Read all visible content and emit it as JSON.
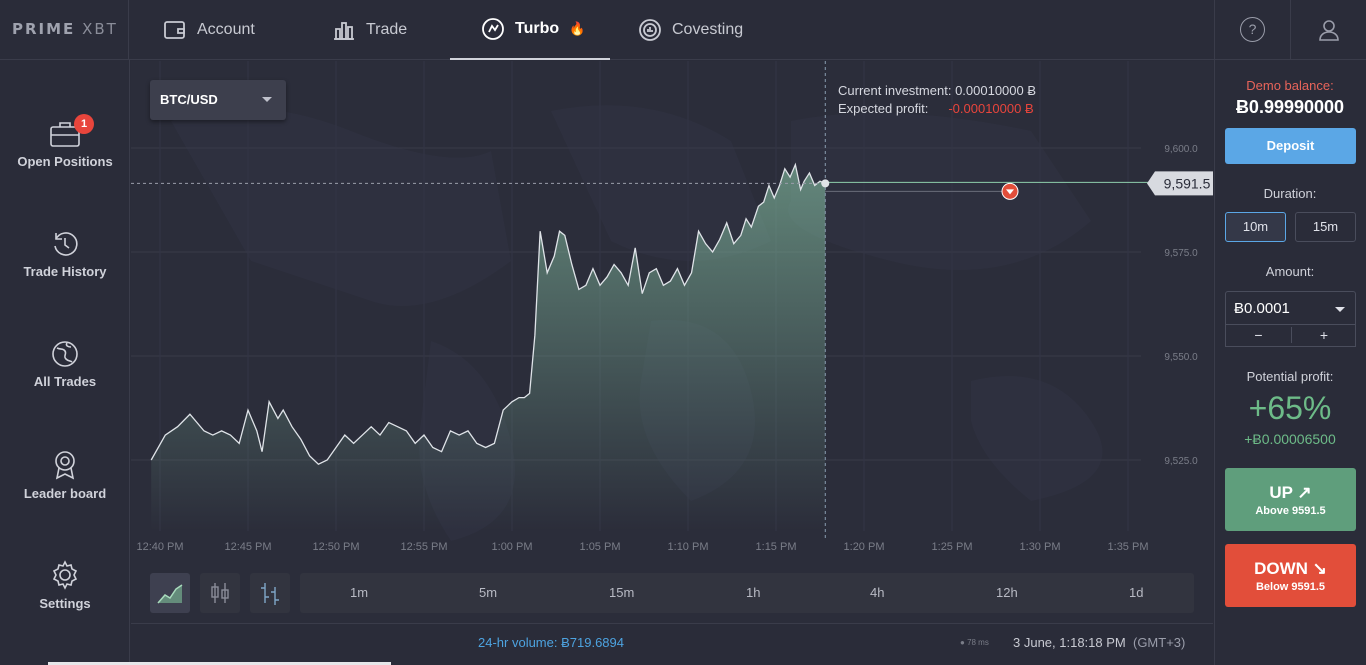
{
  "app": {
    "logo_bold": "PRIME",
    "logo_light": " XBT"
  },
  "nav": {
    "items": [
      {
        "label": "Account",
        "icon": "wallet-icon"
      },
      {
        "label": "Trade",
        "icon": "bar-chart-icon"
      },
      {
        "label": "Turbo",
        "icon": "turbo-icon",
        "active": true
      },
      {
        "label": "Covesting",
        "icon": "covesting-icon"
      }
    ],
    "turbo_badge": "🔥",
    "help": "?"
  },
  "sidebar": {
    "items": [
      {
        "label": "Open Positions",
        "icon": "briefcase-icon",
        "badge": "1"
      },
      {
        "label": "Trade History",
        "icon": "history-icon"
      },
      {
        "label": "All Trades",
        "icon": "globe-icon"
      },
      {
        "label": "Leader board",
        "icon": "award-icon"
      },
      {
        "label": "Settings",
        "icon": "gear-icon"
      }
    ]
  },
  "chart": {
    "pair": "BTC/USD",
    "current_investment_label": "Current investment:",
    "current_investment_value": "0.00010000 Ƀ",
    "expected_profit_label": "Expected profit:",
    "expected_profit_value": "-0.00010000 Ƀ",
    "current_price_label": "9,591.5",
    "timeframes": [
      "1m",
      "5m",
      "15m",
      "1h",
      "4h",
      "12h",
      "1d"
    ]
  },
  "chart_data": {
    "type": "area",
    "title": "",
    "x_tick_labels": [
      "12:40 PM",
      "12:45 PM",
      "12:50 PM",
      "12:55 PM",
      "1:00 PM",
      "1:05 PM",
      "1:10 PM",
      "1:15 PM",
      "1:20 PM",
      "1:25 PM",
      "1:30 PM",
      "1:35 PM"
    ],
    "y_tick_labels": [
      "9,600.0",
      "9,575.0",
      "9,550.0",
      "9,525.0"
    ],
    "ylim": [
      9506,
      9609
    ],
    "grid": true,
    "current_price": 9591.5,
    "entry_marker": "down",
    "x_unit": "minutes after 12:40 PM",
    "series": [
      {
        "x": [
          -0.5,
          0.3,
          1,
          1.7,
          2.5,
          3,
          3.5,
          4,
          4.5,
          5,
          5.5,
          5.8,
          6.2,
          6.7,
          7,
          7.5,
          8,
          8.5,
          9,
          9.5,
          10,
          10.5,
          11,
          11.5,
          12,
          12.5,
          13,
          13.5,
          14,
          14.5,
          15,
          15.5,
          16,
          16.5,
          17,
          17.5,
          18,
          18.5,
          19,
          19.5,
          20,
          20.4,
          20.7,
          21,
          21.3,
          21.6,
          22,
          22.4,
          22.7,
          23,
          23.4,
          23.8,
          24.2,
          24.6,
          25,
          25.4,
          25.8,
          26.2,
          26.6,
          27,
          27.4,
          27.8,
          28.2,
          28.6,
          29,
          29.4,
          29.8,
          30.2,
          30.6,
          31,
          31.4,
          31.8,
          32.2,
          32.6,
          33,
          33.3,
          33.6,
          34,
          34.3,
          34.6,
          34.9,
          35.2,
          35.5,
          35.8,
          36.1,
          36.4,
          36.6,
          36.9,
          37.2,
          37.5,
          37.8
        ],
        "values": [
          9525,
          9531,
          9533,
          9536,
          9532,
          9531,
          9532,
          9531,
          9529,
          9537,
          9532,
          9527,
          9539,
          9535,
          9537,
          9533,
          9530,
          9526,
          9524,
          9525,
          9528,
          9531,
          9529,
          9531,
          9533,
          9531,
          9534,
          9533,
          9532,
          9529,
          9531,
          9528,
          9527,
          9532,
          9531,
          9532,
          9529,
          9528,
          9529,
          9537,
          9539,
          9540,
          9540,
          9541,
          9555,
          9580,
          9570,
          9574,
          9580,
          9579,
          9572,
          9566,
          9567,
          9571,
          9567,
          9569,
          9572,
          9570,
          9567,
          9576,
          9565,
          9570,
          9571,
          9567,
          9568,
          9571,
          9567,
          9570,
          9580,
          9577,
          9575,
          9578,
          9582,
          9577,
          9579,
          9583,
          9581,
          9586,
          9587,
          9591,
          9588,
          9591,
          9595,
          9593,
          9596,
          9590,
          9592,
          9594,
          9591,
          9592,
          9591.5
        ]
      }
    ]
  },
  "status": {
    "volume": "24-hr volume: Ƀ719.6894",
    "ping": "78 ms",
    "datetime": "3 June, 1:18:18 PM",
    "timezone": "(GMT+3)"
  },
  "panel": {
    "demo_label": "Demo balance:",
    "demo_value": "Ƀ0.99990000",
    "deposit": "Deposit",
    "duration_label": "Duration:",
    "durations": [
      "10m",
      "15m"
    ],
    "amount_label": "Amount:",
    "amount_value": "Ƀ0.0001",
    "minus": "−",
    "plus": "+",
    "potential_label": "Potential profit:",
    "potential_pct": "+65%",
    "potential_amt": "+Ƀ0.00006500",
    "up_label": "UP ↗",
    "up_sub": "Above 9591.5",
    "down_label": "DOWN ↘",
    "down_sub": "Below 9591.5"
  },
  "colors": {
    "accent_blue": "#5ba7e6",
    "up_green": "#5f9e7c",
    "down_red": "#e24e3a",
    "profit_green": "#6dbb88"
  }
}
